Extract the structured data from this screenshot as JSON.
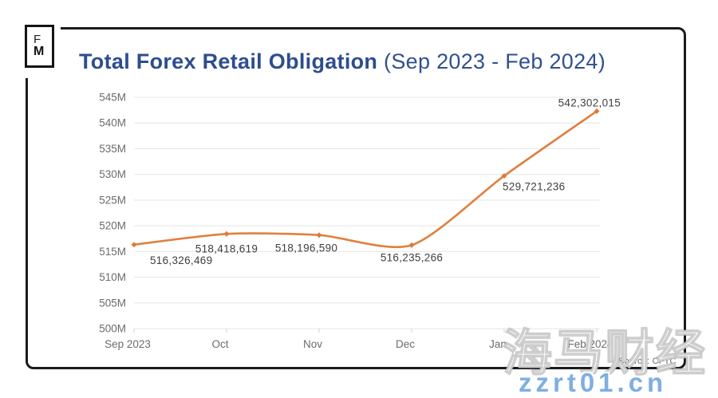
{
  "logo": {
    "line1": "F",
    "line2": "M"
  },
  "title": {
    "main": "Total Forex Retail Obligation",
    "sub": " (Sep 2023 - Feb 2024)"
  },
  "source": "Source: CFTC",
  "watermark": {
    "brand": "海马财经",
    "site": "zzrt01.cn"
  },
  "colors": {
    "title": "#2d4d8e",
    "line": "#e0803f",
    "marker": "#dd7a3a",
    "data_label": "#3e3e3e",
    "axis_label": "#6b6b6b",
    "grid": "#eaeaea",
    "tick": "#d8d8d8",
    "frame": "#1b1b1b",
    "watermark_site": "#7fafe0"
  },
  "chart_data": {
    "type": "line",
    "title": "Total Forex Retail Obligation (Sep 2023 - Feb 2024)",
    "categories": [
      "Sep 2023",
      "Oct",
      "Nov",
      "Dec",
      "Jan",
      "Feb 2024"
    ],
    "values": [
      516326469,
      518418619,
      518196590,
      516235266,
      529721236,
      542302015
    ],
    "value_labels": [
      "516,326,469",
      "518,418,619",
      "518,196,590",
      "516,235,266",
      "529,721,236",
      "542,302,015"
    ],
    "yticks": [
      "500M",
      "505M",
      "510M",
      "515M",
      "520M",
      "525M",
      "530M",
      "535M",
      "540M",
      "545M"
    ],
    "ylim": [
      500000000,
      545000000
    ],
    "ytick_step": 5000000,
    "xlabel": "",
    "ylabel": "",
    "grid": true,
    "legend": false
  }
}
